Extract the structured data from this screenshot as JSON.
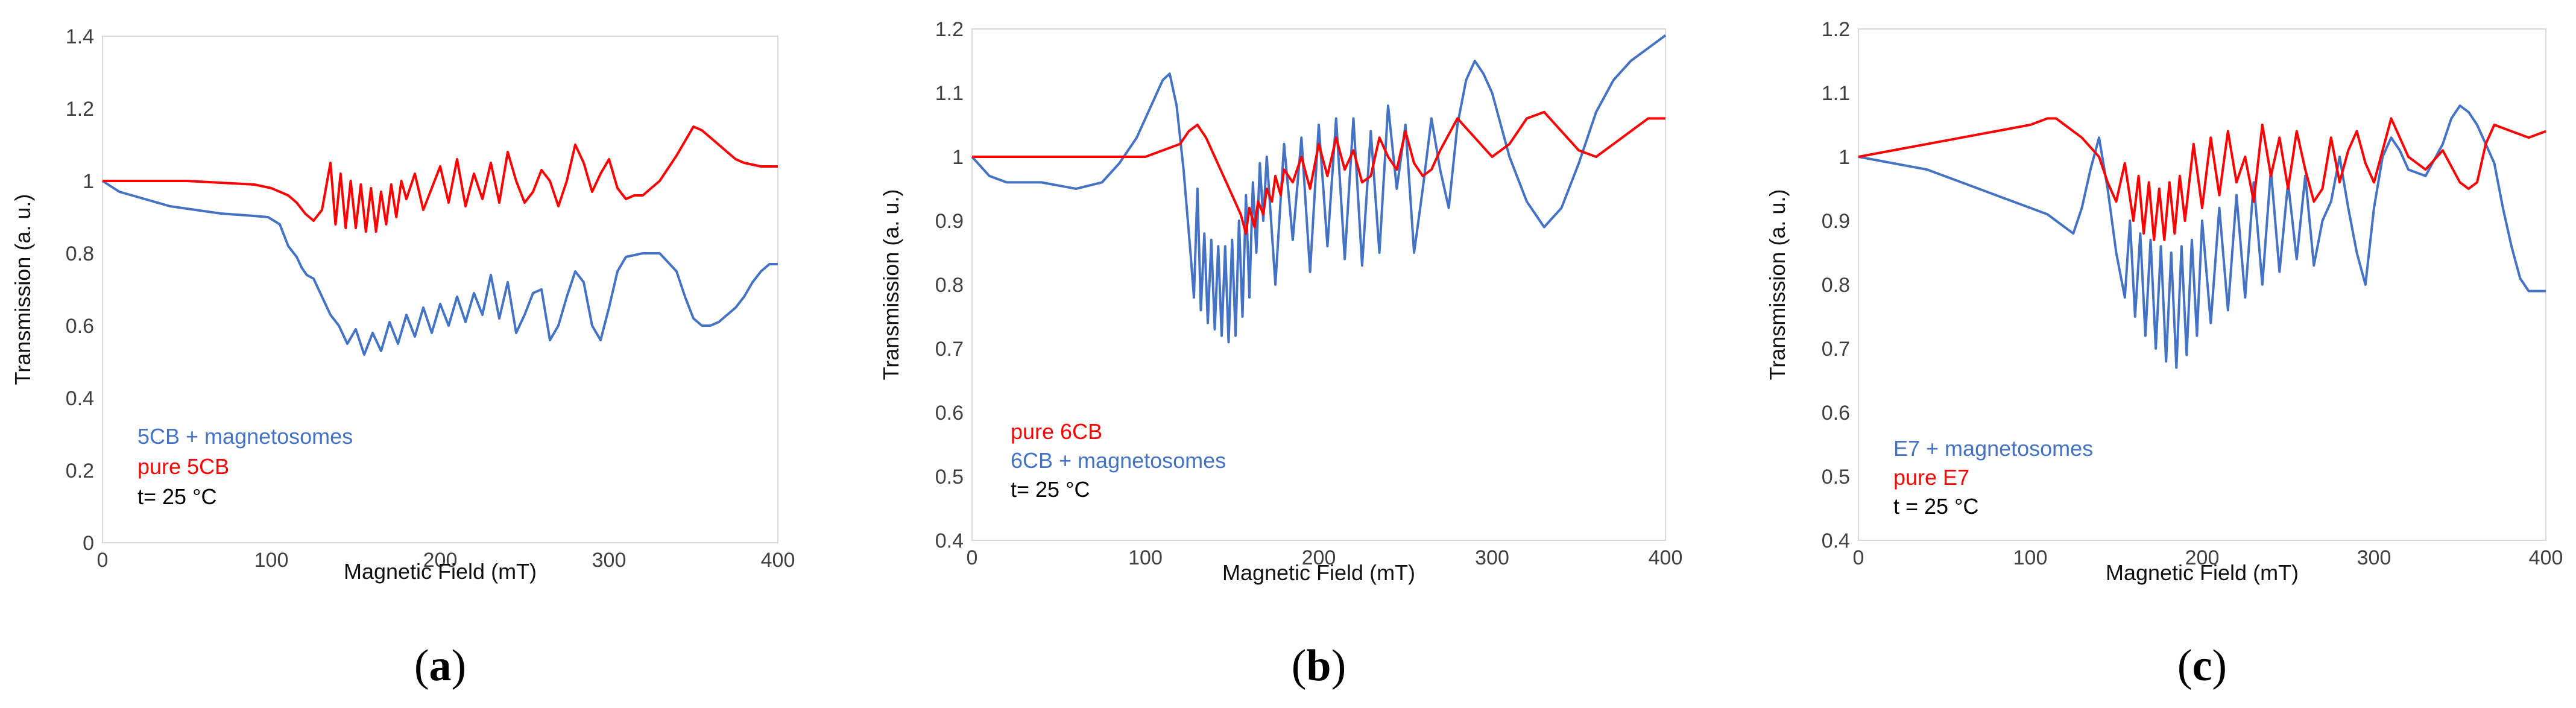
{
  "chart_data": [
    {
      "type": "line",
      "panel": "a",
      "caption_letter": "a",
      "xlabel": "Magnetic Field (mT)",
      "ylabel": "Transmission (a. u.)",
      "xlim": [
        0,
        400
      ],
      "ylim": [
        0,
        1.4
      ],
      "xticks": [
        "0",
        "100",
        "200",
        "300",
        "400"
      ],
      "yticks": [
        "0",
        "0.2",
        "0.4",
        "0.6",
        "0.8",
        "1",
        "1.2",
        "1.4"
      ],
      "legend": [
        {
          "text": "5CB + magnetosomes",
          "color": "#4472C4"
        },
        {
          "text": "pure 5CB",
          "color": "#FF0000"
        },
        {
          "text": "t= 25 °C",
          "color": "#000000"
        }
      ],
      "series": [
        {
          "name": "5CB + magnetosomes",
          "color": "#4472C4",
          "x": [
            0,
            10,
            25,
            40,
            55,
            70,
            85,
            98,
            105,
            110,
            115,
            118,
            121,
            125,
            130,
            135,
            140,
            145,
            150,
            155,
            160,
            165,
            170,
            175,
            180,
            185,
            190,
            195,
            200,
            205,
            210,
            215,
            220,
            225,
            230,
            235,
            240,
            245,
            250,
            255,
            260,
            265,
            270,
            275,
            280,
            285,
            290,
            295,
            300,
            305,
            310,
            320,
            330,
            340,
            345,
            350,
            355,
            360,
            365,
            370,
            375,
            380,
            385,
            390,
            395,
            400
          ],
          "y": [
            1.0,
            0.97,
            0.95,
            0.93,
            0.92,
            0.91,
            0.905,
            0.9,
            0.88,
            0.82,
            0.79,
            0.76,
            0.74,
            0.73,
            0.68,
            0.63,
            0.6,
            0.55,
            0.59,
            0.52,
            0.58,
            0.53,
            0.61,
            0.55,
            0.63,
            0.57,
            0.65,
            0.58,
            0.66,
            0.6,
            0.68,
            0.61,
            0.69,
            0.63,
            0.74,
            0.62,
            0.72,
            0.58,
            0.63,
            0.69,
            0.7,
            0.56,
            0.6,
            0.68,
            0.75,
            0.72,
            0.6,
            0.56,
            0.65,
            0.75,
            0.79,
            0.8,
            0.8,
            0.75,
            0.68,
            0.62,
            0.6,
            0.6,
            0.61,
            0.63,
            0.65,
            0.68,
            0.72,
            0.75,
            0.77,
            0.77
          ]
        },
        {
          "name": "pure 5CB",
          "color": "#FF0000",
          "x": [
            0,
            50,
            90,
            100,
            105,
            110,
            115,
            120,
            125,
            130,
            135,
            138,
            141,
            144,
            147,
            150,
            153,
            156,
            159,
            162,
            165,
            168,
            171,
            174,
            177,
            180,
            185,
            190,
            195,
            200,
            205,
            210,
            215,
            220,
            225,
            230,
            235,
            240,
            245,
            250,
            255,
            260,
            265,
            270,
            275,
            280,
            285,
            290,
            295,
            300,
            305,
            310,
            315,
            320,
            330,
            340,
            350,
            355,
            360,
            365,
            370,
            375,
            380,
            390,
            400
          ],
          "y": [
            1.0,
            1.0,
            0.99,
            0.98,
            0.97,
            0.96,
            0.94,
            0.91,
            0.89,
            0.92,
            1.05,
            0.88,
            1.02,
            0.87,
            1.0,
            0.87,
            0.99,
            0.86,
            0.98,
            0.86,
            0.97,
            0.88,
            0.99,
            0.9,
            1.0,
            0.95,
            1.02,
            0.92,
            0.98,
            1.04,
            0.94,
            1.06,
            0.93,
            1.02,
            0.95,
            1.05,
            0.94,
            1.08,
            1.0,
            0.94,
            0.97,
            1.03,
            1.0,
            0.93,
            1.0,
            1.1,
            1.05,
            0.97,
            1.02,
            1.06,
            0.98,
            0.95,
            0.96,
            0.96,
            1.0,
            1.07,
            1.15,
            1.14,
            1.12,
            1.1,
            1.08,
            1.06,
            1.05,
            1.04,
            1.04
          ]
        }
      ]
    },
    {
      "type": "line",
      "panel": "b",
      "caption_letter": "b",
      "xlabel": "Magnetic Field (mT)",
      "ylabel": "Transmission (a. u.)",
      "xlim": [
        0,
        400
      ],
      "ylim": [
        0.4,
        1.2
      ],
      "xticks": [
        "0",
        "100",
        "200",
        "300",
        "400"
      ],
      "yticks": [
        "0.4",
        "0.5",
        "0.6",
        "0.7",
        "0.8",
        "0.9",
        "1",
        "1.1",
        "1.2"
      ],
      "legend": [
        {
          "text": "pure 6CB",
          "color": "#FF0000"
        },
        {
          "text": "6CB + magnetosomes",
          "color": "#4472C4"
        },
        {
          "text": "t= 25 °C",
          "color": "#000000"
        }
      ],
      "series": [
        {
          "name": "6CB + magnetosomes",
          "color": "#4472C4",
          "x": [
            0,
            10,
            20,
            40,
            60,
            75,
            85,
            95,
            100,
            105,
            110,
            114,
            118,
            122,
            126,
            128,
            130,
            132,
            134,
            136,
            138,
            140,
            142,
            144,
            146,
            148,
            150,
            152,
            154,
            156,
            158,
            160,
            162,
            164,
            166,
            168,
            170,
            175,
            180,
            185,
            190,
            195,
            200,
            205,
            210,
            215,
            220,
            225,
            230,
            235,
            240,
            245,
            250,
            255,
            260,
            265,
            270,
            275,
            280,
            285,
            290,
            295,
            300,
            310,
            320,
            330,
            340,
            350,
            360,
            370,
            380,
            390,
            400
          ],
          "y": [
            1.0,
            0.97,
            0.96,
            0.96,
            0.95,
            0.96,
            0.99,
            1.03,
            1.06,
            1.09,
            1.12,
            1.13,
            1.08,
            0.98,
            0.85,
            0.78,
            0.95,
            0.76,
            0.88,
            0.74,
            0.87,
            0.73,
            0.86,
            0.72,
            0.86,
            0.71,
            0.87,
            0.72,
            0.9,
            0.75,
            0.94,
            0.78,
            0.96,
            0.85,
            0.99,
            0.9,
            1.0,
            0.8,
            1.02,
            0.87,
            1.03,
            0.82,
            1.05,
            0.86,
            1.06,
            0.84,
            1.06,
            0.83,
            1.04,
            0.85,
            1.08,
            0.95,
            1.05,
            0.85,
            0.95,
            1.06,
            0.98,
            0.92,
            1.05,
            1.12,
            1.15,
            1.13,
            1.1,
            1.0,
            0.93,
            0.89,
            0.92,
            0.99,
            1.07,
            1.12,
            1.15,
            1.17,
            1.19
          ]
        },
        {
          "name": "pure 6CB",
          "color": "#FF0000",
          "x": [
            0,
            20,
            40,
            60,
            80,
            100,
            110,
            120,
            125,
            130,
            135,
            140,
            145,
            150,
            155,
            158,
            160,
            163,
            165,
            168,
            170,
            173,
            175,
            178,
            180,
            185,
            190,
            195,
            200,
            205,
            210,
            215,
            220,
            225,
            230,
            235,
            240,
            245,
            250,
            255,
            260,
            265,
            270,
            280,
            290,
            300,
            310,
            320,
            330,
            340,
            350,
            360,
            370,
            380,
            390,
            400
          ],
          "y": [
            1.0,
            1.0,
            1.0,
            1.0,
            1.0,
            1.0,
            1.01,
            1.02,
            1.04,
            1.05,
            1.03,
            1.0,
            0.97,
            0.94,
            0.91,
            0.88,
            0.92,
            0.89,
            0.93,
            0.91,
            0.95,
            0.93,
            0.97,
            0.94,
            0.98,
            0.96,
            1.0,
            0.95,
            1.02,
            0.97,
            1.03,
            0.98,
            1.01,
            0.96,
            0.97,
            1.03,
            1.0,
            0.98,
            1.04,
            0.99,
            0.97,
            0.98,
            1.01,
            1.06,
            1.03,
            1.0,
            1.02,
            1.06,
            1.07,
            1.04,
            1.01,
            1.0,
            1.02,
            1.04,
            1.06,
            1.06
          ]
        }
      ]
    },
    {
      "type": "line",
      "panel": "c",
      "caption_letter": "c",
      "xlabel": "Magnetic Field (mT)",
      "ylabel": "Transmission (a. u.)",
      "xlim": [
        0,
        400
      ],
      "ylim": [
        0.4,
        1.2
      ],
      "xticks": [
        "0",
        "100",
        "200",
        "300",
        "400"
      ],
      "yticks": [
        "0.4",
        "0.5",
        "0.6",
        "0.7",
        "0.8",
        "0.9",
        "1",
        "1.1",
        "1.2"
      ],
      "legend": [
        {
          "text": "E7 + magnetosomes",
          "color": "#4472C4"
        },
        {
          "text": "pure E7",
          "color": "#FF0000"
        },
        {
          "text": "t = 25 °C",
          "color": "#000000"
        }
      ],
      "series": [
        {
          "name": "E7 + magnetosomes",
          "color": "#4472C4",
          "x": [
            0,
            20,
            40,
            60,
            80,
            100,
            110,
            120,
            125,
            130,
            135,
            140,
            145,
            150,
            155,
            158,
            161,
            164,
            167,
            170,
            173,
            176,
            179,
            182,
            185,
            188,
            191,
            194,
            197,
            200,
            205,
            210,
            215,
            220,
            225,
            230,
            235,
            240,
            245,
            250,
            255,
            260,
            265,
            270,
            275,
            280,
            285,
            290,
            295,
            300,
            305,
            310,
            315,
            320,
            330,
            340,
            345,
            350,
            355,
            360,
            365,
            370,
            375,
            380,
            385,
            390,
            395,
            400
          ],
          "y": [
            1.0,
            0.99,
            0.98,
            0.96,
            0.94,
            0.92,
            0.91,
            0.89,
            0.88,
            0.92,
            0.98,
            1.03,
            0.95,
            0.85,
            0.78,
            0.9,
            0.75,
            0.88,
            0.72,
            0.87,
            0.7,
            0.86,
            0.68,
            0.85,
            0.67,
            0.86,
            0.69,
            0.87,
            0.72,
            0.9,
            0.74,
            0.92,
            0.76,
            0.94,
            0.78,
            0.96,
            0.8,
            0.98,
            0.82,
            0.96,
            0.84,
            0.97,
            0.83,
            0.9,
            0.93,
            1.0,
            0.92,
            0.85,
            0.8,
            0.92,
            1.0,
            1.03,
            1.01,
            0.98,
            0.97,
            1.02,
            1.06,
            1.08,
            1.07,
            1.05,
            1.02,
            0.99,
            0.92,
            0.86,
            0.81,
            0.79,
            0.79,
            0.79
          ]
        },
        {
          "name": "pure E7",
          "color": "#FF0000",
          "x": [
            0,
            20,
            40,
            60,
            80,
            100,
            110,
            115,
            120,
            130,
            140,
            145,
            150,
            155,
            160,
            163,
            166,
            169,
            172,
            175,
            178,
            181,
            184,
            187,
            190,
            195,
            200,
            205,
            210,
            215,
            220,
            225,
            230,
            235,
            240,
            245,
            250,
            255,
            260,
            265,
            270,
            275,
            280,
            285,
            290,
            295,
            300,
            305,
            310,
            315,
            320,
            330,
            340,
            350,
            355,
            360,
            365,
            370,
            380,
            390,
            400
          ],
          "y": [
            1.0,
            1.01,
            1.02,
            1.03,
            1.04,
            1.05,
            1.06,
            1.06,
            1.05,
            1.03,
            1.0,
            0.96,
            0.93,
            0.99,
            0.9,
            0.97,
            0.88,
            0.96,
            0.87,
            0.95,
            0.87,
            0.96,
            0.88,
            0.97,
            0.9,
            1.02,
            0.92,
            1.03,
            0.94,
            1.04,
            0.96,
            1.0,
            0.93,
            1.05,
            0.97,
            1.03,
            0.95,
            1.04,
            0.98,
            0.93,
            0.95,
            1.03,
            0.96,
            1.01,
            1.04,
            0.99,
            0.96,
            1.01,
            1.06,
            1.03,
            1.0,
            0.98,
            1.01,
            0.96,
            0.95,
            0.96,
            1.02,
            1.05,
            1.04,
            1.03,
            1.04
          ]
        }
      ]
    }
  ]
}
